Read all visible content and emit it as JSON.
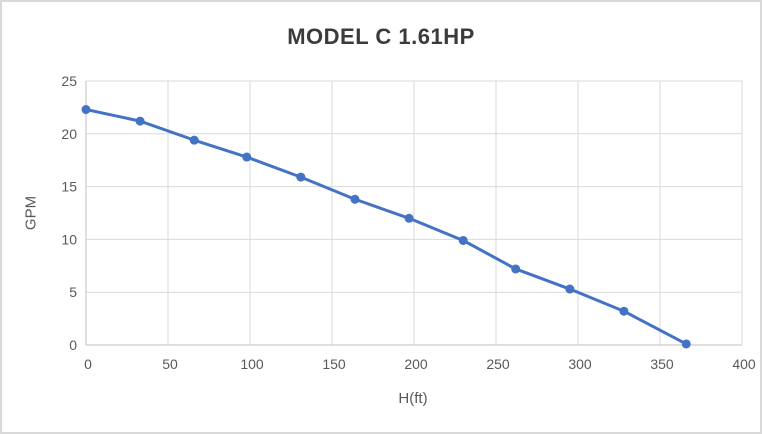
{
  "window": {
    "background_color": "#ffffff",
    "border_color": "#d9d9d9"
  },
  "chart_data": {
    "type": "line",
    "title": "MODEL C 1.61HP",
    "xlabel": "H(ft)",
    "ylabel": "GPM",
    "x": [
      0,
      33,
      66,
      98,
      131,
      164,
      197,
      230,
      262,
      295,
      328,
      366
    ],
    "values": [
      22.3,
      21.2,
      19.4,
      17.8,
      15.9,
      13.8,
      12.0,
      9.9,
      7.2,
      5.3,
      3.2,
      0.1
    ],
    "xlim": [
      0,
      400
    ],
    "ylim": [
      0,
      25
    ],
    "x_ticks": [
      0,
      50,
      100,
      150,
      200,
      250,
      300,
      350,
      400
    ],
    "y_ticks": [
      0,
      5,
      10,
      15,
      20,
      25
    ],
    "grid": true,
    "legend": false,
    "line_color": "#4472C4",
    "marker": "circle",
    "gridline_color": "#d9d9d9",
    "axis_line_color": "#bfbfbf",
    "tick_label_color": "#595959",
    "title_color": "#3b3b3b"
  }
}
